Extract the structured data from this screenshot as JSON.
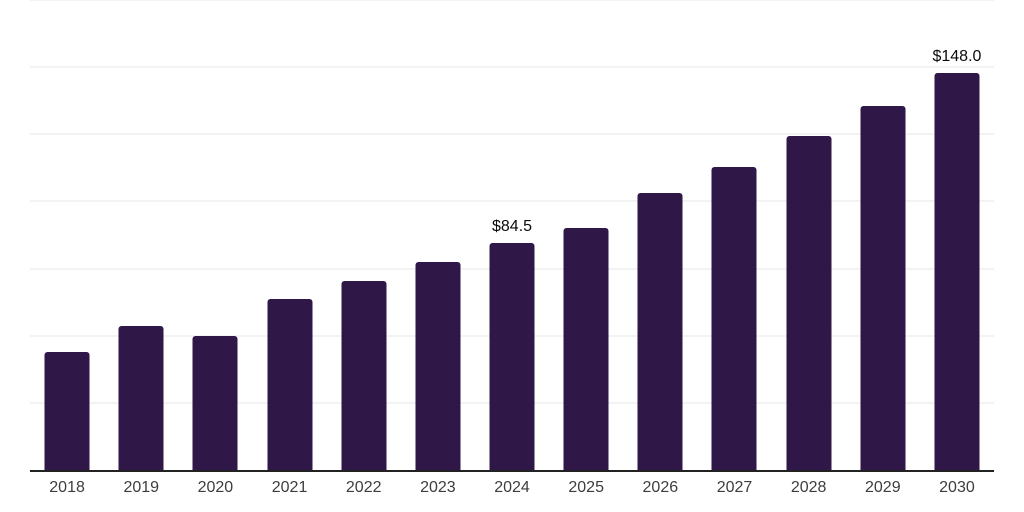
{
  "chart_data": {
    "type": "bar",
    "title": "",
    "xlabel": "",
    "ylabel": "",
    "categories": [
      "2018",
      "2019",
      "2020",
      "2021",
      "2022",
      "2023",
      "2024",
      "2025",
      "2026",
      "2027",
      "2028",
      "2029",
      "2030"
    ],
    "values": [
      44,
      53.5,
      50,
      63.5,
      70.5,
      77.5,
      84.5,
      90,
      103,
      113,
      124.5,
      135.5,
      148
    ],
    "value_labels": {
      "2024": "$84.5",
      "2030": "$148.0"
    },
    "ylim": [
      0,
      175
    ],
    "gridline_values": [
      25,
      50,
      75,
      100,
      125,
      150,
      175
    ],
    "grid": "horizontal-only",
    "legend": "none",
    "y_tick_labels_visible": false,
    "colors": {
      "bar": "#2f1747",
      "grid": "#f3f3f3",
      "axis": "#222222",
      "x_tick_label": "#3d3d3d",
      "value_label": "#0a0a0a",
      "background": "#ffffff"
    }
  }
}
